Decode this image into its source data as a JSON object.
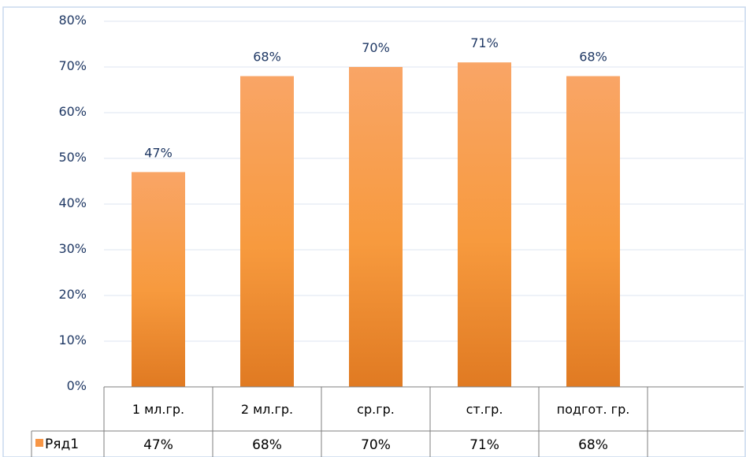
{
  "chart_data": {
    "type": "bar",
    "categories": [
      "1 мл.гр.",
      "2 мл.гр.",
      "ср.гр.",
      "ст.гр.",
      "подгот. гр."
    ],
    "series": [
      {
        "name": "Ряд1",
        "values": [
          47,
          68,
          70,
          71,
          68
        ]
      }
    ],
    "data_labels": [
      "47%",
      "68%",
      "70%",
      "71%",
      "68%"
    ],
    "table_values": [
      "47%",
      "68%",
      "70%",
      "71%",
      "68%"
    ],
    "y_ticks": [
      "0%",
      "10%",
      "20%",
      "30%",
      "40%",
      "50%",
      "60%",
      "70%",
      "80%"
    ],
    "ylim": [
      0,
      80
    ],
    "grid": true,
    "legend": "data-table",
    "title": "",
    "xlabel": "",
    "ylabel": ""
  },
  "colors": {
    "bar_top": "#F9A566",
    "bar_mid": "#F79A3E",
    "bar_bottom": "#E07A22",
    "grid": "#DCE6F2",
    "frame": "#C9D9EE",
    "table_line": "#7F7F7F",
    "legend_key": "#F79646",
    "tick_text": "#1F3864"
  }
}
